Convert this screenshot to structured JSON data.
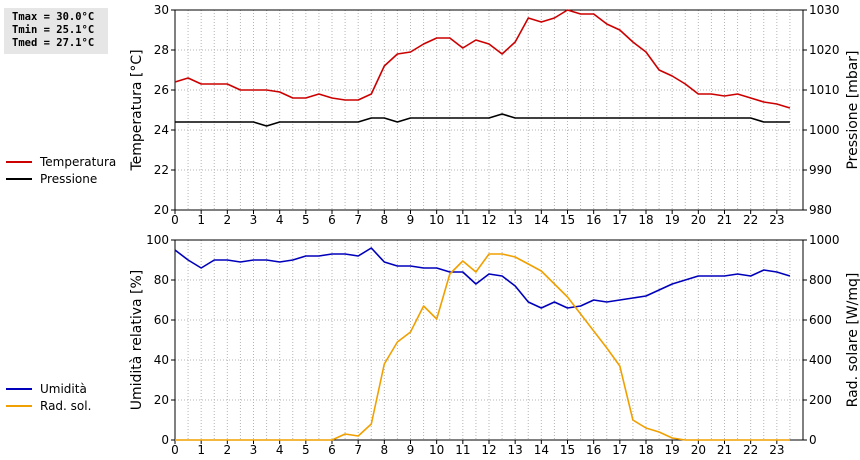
{
  "stats": {
    "tmax": "Tmax = 30.0°C",
    "tmin": "Tmin = 25.1°C",
    "tmed": "Tmed = 27.1°C"
  },
  "chart_data": [
    {
      "type": "line",
      "ylabel_left": "Temperatura [°C]",
      "ylabel_right": "Pressione [mbar]",
      "ylim_left": [
        20,
        30
      ],
      "ylim_right": [
        980,
        1030
      ],
      "yticks_left": [
        20,
        22,
        24,
        26,
        28,
        30
      ],
      "yticks_right": [
        980,
        990,
        1000,
        1010,
        1020,
        1030
      ],
      "xlim": [
        0,
        24
      ],
      "xticks": [
        0,
        1,
        2,
        3,
        4,
        5,
        6,
        7,
        8,
        9,
        10,
        11,
        12,
        13,
        14,
        15,
        16,
        17,
        18,
        19,
        20,
        21,
        22,
        23
      ],
      "grid": true,
      "legend_position": "left",
      "series": [
        {
          "name": "Temperatura",
          "axis": "left",
          "color": "#cc0000",
          "x": [
            0,
            0.5,
            1,
            1.5,
            2,
            2.5,
            3,
            3.5,
            4,
            4.5,
            5,
            5.5,
            6,
            6.5,
            7,
            7.5,
            8,
            8.5,
            9,
            9.5,
            10,
            10.5,
            11,
            11.5,
            12,
            12.5,
            13,
            13.5,
            14,
            14.5,
            15,
            15.5,
            16,
            16.5,
            17,
            17.5,
            18,
            18.5,
            19,
            19.5,
            20,
            20.5,
            21,
            21.5,
            22,
            22.5,
            23,
            23.5
          ],
          "y": [
            26.4,
            26.6,
            26.3,
            26.3,
            26.3,
            26.0,
            26.0,
            26.0,
            25.9,
            25.6,
            25.6,
            25.8,
            25.6,
            25.5,
            25.5,
            25.8,
            27.2,
            27.8,
            27.9,
            28.3,
            28.6,
            28.6,
            28.1,
            28.5,
            28.3,
            27.8,
            28.4,
            29.6,
            29.4,
            29.6,
            30.0,
            29.8,
            29.8,
            29.3,
            29.0,
            28.4,
            27.9,
            27.0,
            26.7,
            26.3,
            25.8,
            25.8,
            25.7,
            25.8,
            25.6,
            25.4,
            25.3,
            25.1
          ]
        },
        {
          "name": "Pressione",
          "axis": "right",
          "color": "#000000",
          "x": [
            0,
            0.5,
            1,
            1.5,
            2,
            2.5,
            3,
            3.5,
            4,
            4.5,
            5,
            5.5,
            6,
            6.5,
            7,
            7.5,
            8,
            8.5,
            9,
            9.5,
            10,
            10.5,
            11,
            11.5,
            12,
            12.5,
            13,
            13.5,
            14,
            14.5,
            15,
            15.5,
            16,
            16.5,
            17,
            17.5,
            18,
            18.5,
            19,
            19.5,
            20,
            20.5,
            21,
            21.5,
            22,
            22.5,
            23,
            23.5
          ],
          "y": [
            1002,
            1002,
            1002,
            1002,
            1002,
            1002,
            1002,
            1001,
            1002,
            1002,
            1002,
            1002,
            1002,
            1002,
            1002,
            1003,
            1003,
            1002,
            1003,
            1003,
            1003,
            1003,
            1003,
            1003,
            1003,
            1004,
            1003,
            1003,
            1003,
            1003,
            1003,
            1003,
            1003,
            1003,
            1003,
            1003,
            1003,
            1003,
            1003,
            1003,
            1003,
            1003,
            1003,
            1003,
            1003,
            1002,
            1002,
            1002
          ]
        }
      ]
    },
    {
      "type": "line",
      "ylabel_left": "Umidità relativa [%]",
      "ylabel_right": "Rad. solare [W/mq]",
      "ylim_left": [
        0,
        100
      ],
      "ylim_right": [
        0,
        1000
      ],
      "yticks_left": [
        0,
        20,
        40,
        60,
        80,
        100
      ],
      "yticks_right": [
        0,
        200,
        400,
        600,
        800,
        1000
      ],
      "xlim": [
        0,
        24
      ],
      "xticks": [
        0,
        1,
        2,
        3,
        4,
        5,
        6,
        7,
        8,
        9,
        10,
        11,
        12,
        13,
        14,
        15,
        16,
        17,
        18,
        19,
        20,
        21,
        22,
        23
      ],
      "grid": true,
      "legend_position": "left",
      "series": [
        {
          "name": "Umidità",
          "axis": "left",
          "color": "#0000bb",
          "x": [
            0,
            0.5,
            1,
            1.5,
            2,
            2.5,
            3,
            3.5,
            4,
            4.5,
            5,
            5.5,
            6,
            6.5,
            7,
            7.5,
            8,
            8.5,
            9,
            9.5,
            10,
            10.5,
            11,
            11.5,
            12,
            12.5,
            13,
            13.5,
            14,
            14.5,
            15,
            15.5,
            16,
            16.5,
            17,
            17.5,
            18,
            18.5,
            19,
            19.5,
            20,
            20.5,
            21,
            21.5,
            22,
            22.5,
            23,
            23.5
          ],
          "y": [
            95,
            90,
            86,
            90,
            90,
            89,
            90,
            90,
            89,
            90,
            92,
            92,
            93,
            93,
            92,
            96,
            89,
            87,
            87,
            86,
            86,
            84,
            84,
            78,
            83,
            82,
            77,
            69,
            66,
            69,
            66,
            67,
            70,
            69,
            70,
            71,
            72,
            75,
            78,
            80,
            82,
            82,
            82,
            83,
            82,
            85,
            84,
            82
          ]
        },
        {
          "name": "Rad. sol.",
          "axis": "right",
          "color": "#f0a000",
          "x": [
            0,
            0.5,
            1,
            1.5,
            2,
            2.5,
            3,
            3.5,
            4,
            4.5,
            5,
            5.5,
            6,
            6.5,
            7,
            7.5,
            8,
            8.5,
            9,
            9.5,
            10,
            10.5,
            11,
            11.5,
            12,
            12.5,
            13,
            13.5,
            14,
            14.5,
            15,
            15.5,
            16,
            16.5,
            17,
            17.5,
            18,
            18.5,
            19,
            19.5,
            20,
            20.5,
            21,
            21.5,
            22,
            22.5,
            23,
            23.5
          ],
          "y": [
            0,
            0,
            0,
            0,
            0,
            0,
            0,
            0,
            0,
            0,
            0,
            0,
            0,
            30,
            20,
            80,
            380,
            490,
            540,
            670,
            605,
            830,
            895,
            840,
            930,
            930,
            915,
            880,
            845,
            780,
            715,
            630,
            545,
            460,
            370,
            100,
            60,
            40,
            10,
            0,
            0,
            0,
            0,
            0,
            0,
            0,
            0,
            0
          ]
        }
      ]
    }
  ]
}
